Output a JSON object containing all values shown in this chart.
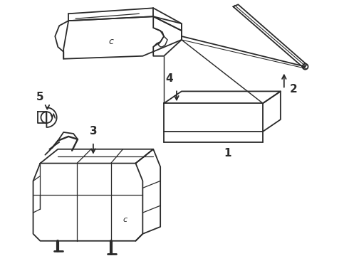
{
  "background_color": "#ffffff",
  "line_color": "#2a2a2a",
  "line_width": 1.3,
  "figsize": [
    4.9,
    3.6
  ],
  "dpi": 100
}
